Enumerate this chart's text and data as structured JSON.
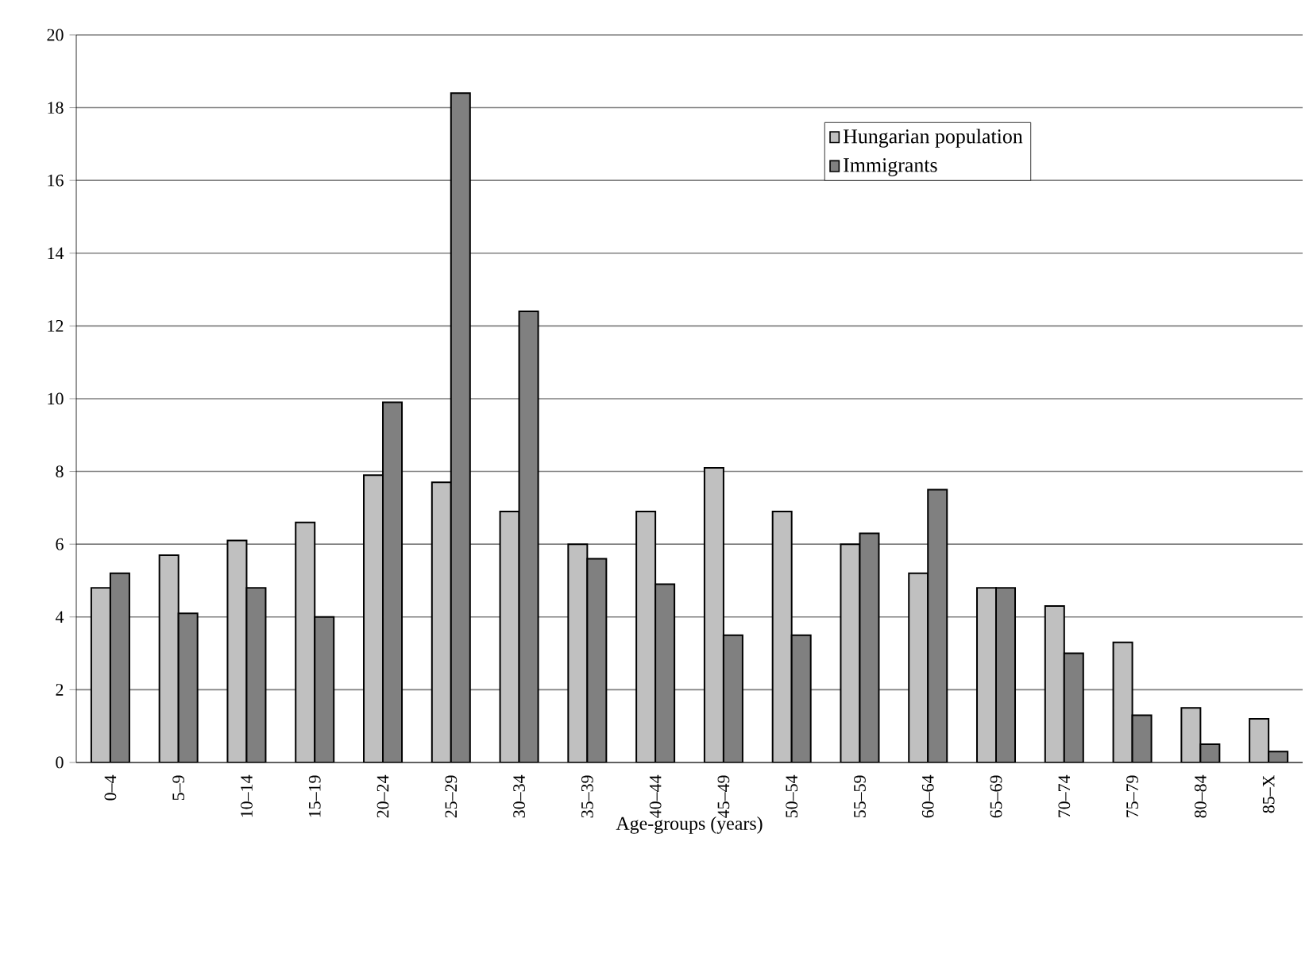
{
  "chart_data": {
    "type": "bar",
    "xlabel": "Age-groups (years)",
    "categories": [
      "0–4",
      "5–9",
      "10–14",
      "15–19",
      "20–24",
      "25–29",
      "30–34",
      "35–39",
      "40–44",
      "45–49",
      "50–54",
      "55–59",
      "60–64",
      "65–69",
      "70–74",
      "75–79",
      "80–84",
      "85–X"
    ],
    "series": [
      {
        "name": "Hungarian population",
        "color": "#c0c0c0",
        "values": [
          4.8,
          5.7,
          6.1,
          6.6,
          7.9,
          7.7,
          6.9,
          6.0,
          6.9,
          8.1,
          6.9,
          6.0,
          5.2,
          4.8,
          4.3,
          3.3,
          1.5,
          1.2
        ]
      },
      {
        "name": "Immigrants",
        "color": "#808080",
        "values": [
          5.2,
          4.1,
          4.8,
          4.0,
          9.9,
          18.4,
          12.4,
          5.6,
          4.9,
          3.5,
          3.5,
          6.3,
          7.5,
          4.8,
          3.0,
          1.3,
          0.5,
          0.3
        ]
      }
    ],
    "ylim": [
      0,
      20
    ],
    "yticks": [
      0,
      2,
      4,
      6,
      8,
      10,
      12,
      14,
      16,
      18,
      20
    ],
    "grid": "y",
    "legend": "top right"
  }
}
